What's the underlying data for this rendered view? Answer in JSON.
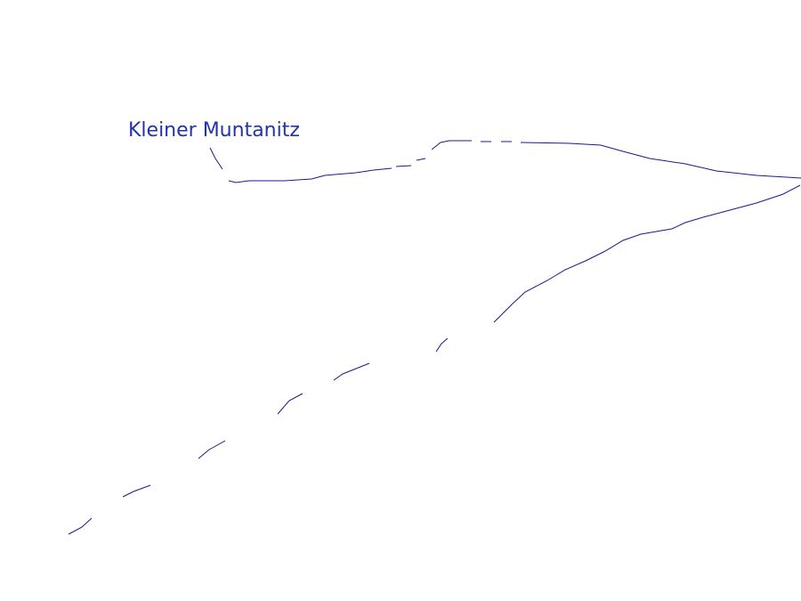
{
  "label": "Kleiner Muntanitz"
}
